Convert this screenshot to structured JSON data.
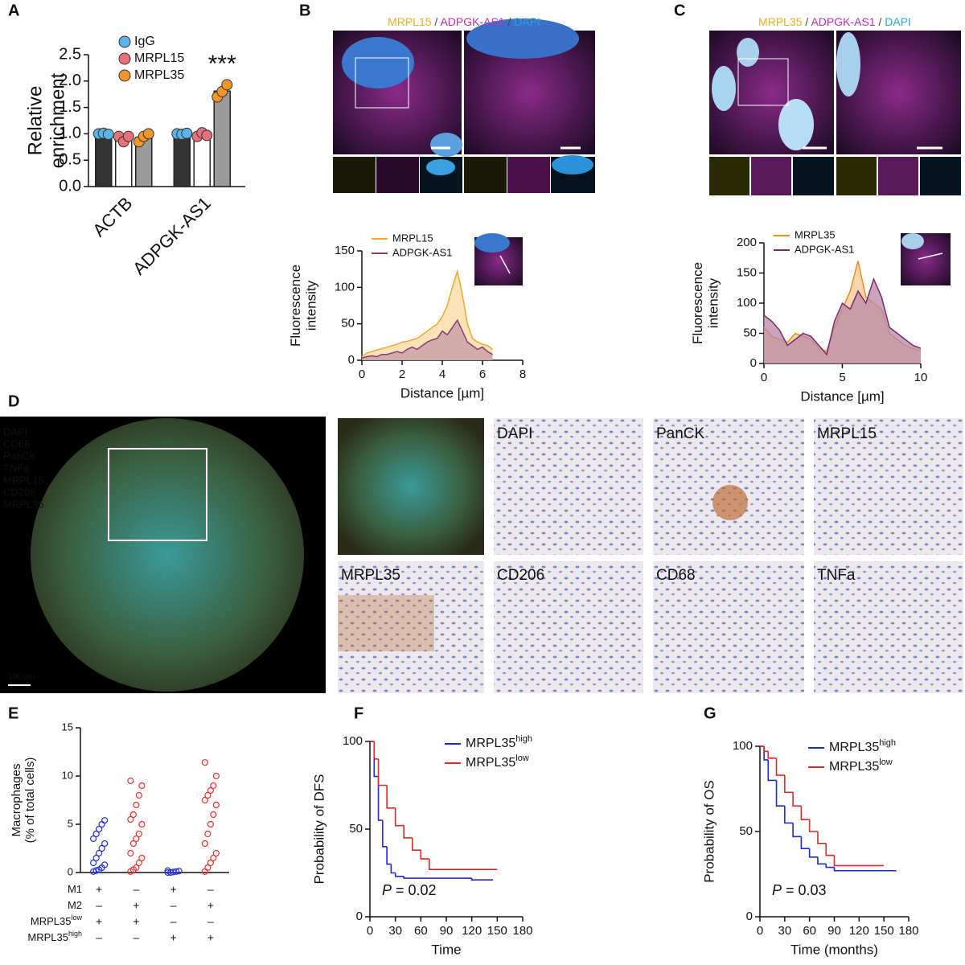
{
  "panel_labels": [
    "A",
    "B",
    "C",
    "D",
    "E",
    "F",
    "G"
  ],
  "images": {
    "B_title": [
      {
        "text": "MRPL15",
        "color": "#e8b020"
      },
      {
        "text": " / ",
        "color": "#444444"
      },
      {
        "text": "ADPGK-AS1",
        "color": "#c02cb8"
      },
      {
        "text": " / ",
        "color": "#444444"
      },
      {
        "text": "DAPI",
        "color": "#2ea0e0"
      }
    ],
    "C_title": [
      {
        "text": "MRPL35",
        "color": "#e8b020"
      },
      {
        "text": " / ",
        "color": "#444444"
      },
      {
        "text": "ADPGK-AS1",
        "color": "#c02cb8"
      },
      {
        "text": " / ",
        "color": "#444444"
      },
      {
        "text": "DAPI",
        "color": "#2ea0e0"
      }
    ],
    "D_legend": [
      {
        "text": "DAPI",
        "color": "#ffffff"
      },
      {
        "text": "CD68",
        "color": "#3a3ad0"
      },
      {
        "text": "PanCK",
        "color": "#40c8c8"
      },
      {
        "text": "TNFa",
        "color": "#40c040"
      },
      {
        "text": "MRPL15",
        "color": "#e8e040"
      },
      {
        "text": "CD206",
        "color": "#f08030"
      },
      {
        "text": "MRPL35",
        "color": "#e03020"
      }
    ],
    "D_scale": "100 µm",
    "D_tiles": [
      {
        "text": "DAPI",
        "color": "#6f86c6"
      },
      {
        "text": "PanCK",
        "color": "#b0502a"
      },
      {
        "text": "MRPL15",
        "color": "#b0502a"
      },
      {
        "text": "MRPL35",
        "color": "#b0502a"
      },
      {
        "text": "CD206",
        "color": "#b0502a"
      },
      {
        "text": "CD68",
        "color": "#b0502a"
      },
      {
        "text": "TNFa",
        "color": "#b0502a"
      }
    ]
  },
  "chart_data": [
    {
      "type": "bar",
      "ylabel": [
        "Relative",
        "enrichment"
      ],
      "categories": [
        "ACTB",
        "ADPGK-AS1"
      ],
      "series": [
        {
          "name": "IgG",
          "color": "#5ab4e8",
          "bar_color": "#333333",
          "values": [
            1.0,
            1.0
          ],
          "points": [
            [
              1.0,
              1.01,
              0.99
            ],
            [
              1.0,
              0.99,
              1.01
            ]
          ]
        },
        {
          "name": "MRPL15",
          "color": "#e8707a",
          "bar_color": "#ffffff",
          "values": [
            0.92,
            0.98
          ],
          "points": [
            [
              0.95,
              0.85,
              0.95
            ],
            [
              0.95,
              1.02,
              0.97
            ]
          ]
        },
        {
          "name": "MRPL35",
          "color": "#f0962a",
          "bar_color": "#9a9a9a",
          "values": [
            0.93,
            1.81
          ],
          "points": [
            [
              0.85,
              0.95,
              1.0
            ],
            [
              1.7,
              1.8,
              1.93
            ]
          ]
        }
      ],
      "annotation": "***",
      "ylim": [
        0,
        2.5
      ],
      "yticks": [
        {
          "value": 0,
          "label": "0.0"
        },
        0.5,
        {
          "value": 1,
          "label": "1.0"
        },
        1.5,
        {
          "value": 2,
          "label": "2.0"
        },
        2.5
      ]
    },
    {
      "type": "area",
      "xlabel": "Distance [µm]",
      "ylabel": [
        "Fluorescence",
        "intensity"
      ],
      "x": [
        0,
        0.25,
        0.5,
        0.75,
        1,
        1.25,
        1.5,
        1.75,
        2,
        2.25,
        2.5,
        2.75,
        3,
        3.25,
        3.5,
        3.75,
        4,
        4.25,
        4.5,
        4.75,
        5,
        5.25,
        5.5,
        5.75,
        6,
        6.25,
        6.5
      ],
      "series": [
        {
          "name": "MRPL15",
          "color": "#f0a830",
          "fill": "#f8d9a0",
          "values": [
            5,
            10,
            12,
            14,
            16,
            18,
            20,
            22,
            25,
            26,
            28,
            30,
            35,
            40,
            45,
            50,
            60,
            75,
            100,
            122,
            90,
            50,
            30,
            25,
            22,
            20,
            15
          ]
        },
        {
          "name": "ADPGK-AS1",
          "color": "#8e3a6a",
          "fill": "#c49aa6",
          "values": [
            3,
            5,
            6,
            5,
            8,
            8,
            10,
            12,
            10,
            15,
            18,
            15,
            20,
            25,
            28,
            30,
            40,
            35,
            45,
            55,
            40,
            25,
            20,
            15,
            18,
            12,
            8
          ]
        }
      ],
      "xlim": [
        0,
        8
      ],
      "xticks": [
        0,
        2,
        4,
        6,
        8
      ],
      "ylim": [
        0,
        150
      ],
      "yticks": [
        0,
        50,
        100,
        150
      ]
    },
    {
      "type": "area",
      "xlabel": "Distance [µm]",
      "ylabel": [
        "Fluorescence",
        "intensity"
      ],
      "x": [
        0,
        0.5,
        1,
        1.5,
        2,
        2.5,
        3,
        3.5,
        4,
        4.5,
        5,
        5.5,
        6,
        6.5,
        7,
        7.5,
        8,
        8.5,
        9,
        9.5,
        10
      ],
      "series": [
        {
          "name": "MRPL35",
          "color": "#f08a20",
          "fill": "#f5c890",
          "values": [
            60,
            45,
            40,
            35,
            50,
            45,
            40,
            25,
            20,
            60,
            90,
            120,
            170,
            110,
            100,
            90,
            50,
            40,
            30,
            25,
            20
          ]
        },
        {
          "name": "ADPGK-AS1",
          "color": "#7a2a6a",
          "fill": "#b888a8",
          "values": [
            80,
            70,
            55,
            30,
            40,
            50,
            45,
            30,
            15,
            70,
            100,
            90,
            120,
            100,
            140,
            110,
            60,
            50,
            40,
            30,
            25
          ]
        }
      ],
      "xlim": [
        0,
        10
      ],
      "xticks": [
        0,
        5,
        10
      ],
      "ylim": [
        0,
        200
      ],
      "yticks": [
        0,
        50,
        100,
        150,
        200
      ]
    },
    {
      "type": "strip",
      "ylabel": [
        "Macrophages",
        "(% of total cells)"
      ],
      "groups": [
        {
          "color": "#2030e0",
          "values": [
            0.1,
            0.2,
            0.3,
            0.5,
            0.8,
            1,
            1.5,
            2,
            2.5,
            3,
            3.5,
            4,
            4.5,
            5,
            5.4
          ]
        },
        {
          "color": "#f03030",
          "values": [
            0.1,
            0.3,
            0.5,
            1,
            1.5,
            2,
            3,
            3.5,
            4,
            5,
            5.5,
            6,
            7,
            8,
            9,
            9.5
          ]
        },
        {
          "color": "#2030e0",
          "values": [
            0,
            0,
            0.05,
            0.1,
            0.15,
            0.2
          ]
        },
        {
          "color": "#f03030",
          "values": [
            0.1,
            0.5,
            1,
            1.5,
            2,
            3,
            4,
            5,
            6,
            7,
            7.5,
            8,
            8.5,
            9,
            10,
            11.4
          ]
        }
      ],
      "factors": [
        {
          "label": "M1",
          "marks": [
            "+",
            "–",
            "+",
            "–"
          ]
        },
        {
          "label": "M2",
          "marks": [
            "–",
            "+",
            "–",
            "+"
          ]
        },
        {
          "label": "MRPL35",
          "sup": "low",
          "marks": [
            "+",
            "+",
            "–",
            "–"
          ]
        },
        {
          "label": "MRPL35",
          "sup": "high",
          "marks": [
            "–",
            "–",
            "+",
            "+"
          ]
        }
      ],
      "ylim": [
        0,
        15
      ],
      "yticks": [
        0,
        5,
        10,
        15
      ]
    },
    {
      "type": "km",
      "xlabel": "Time",
      "ylabel": "Probability of DFS",
      "series": [
        {
          "name": "MRPL35",
          "name_sup": "high",
          "color": "#1a2ad8",
          "x": [
            0,
            5,
            10,
            15,
            20,
            25,
            30,
            40,
            60,
            90,
            120,
            145
          ],
          "values": [
            100,
            80,
            55,
            40,
            30,
            25,
            23,
            22,
            22,
            22,
            21,
            21
          ]
        },
        {
          "name": "MRPL35",
          "name_sup": "low",
          "color": "#e02828",
          "x": [
            0,
            5,
            10,
            20,
            30,
            40,
            50,
            60,
            70,
            80,
            100,
            150
          ],
          "values": [
            100,
            90,
            75,
            62,
            52,
            45,
            38,
            33,
            27,
            27,
            27,
            27
          ]
        }
      ],
      "annotation": {
        "italic": "P",
        "text": " = 0.02"
      },
      "xlim": [
        0,
        180
      ],
      "xticks": [
        0,
        30,
        60,
        90,
        120,
        150,
        180
      ],
      "ylim": [
        0,
        100
      ],
      "yticks": [
        0,
        50,
        100
      ]
    },
    {
      "type": "km",
      "xlabel": "Time (months)",
      "ylabel": "Probability of OS",
      "series": [
        {
          "name": "MRPL35",
          "name_sup": "high",
          "color": "#1a2ad8",
          "x": [
            0,
            5,
            10,
            20,
            30,
            40,
            50,
            60,
            70,
            80,
            90,
            165
          ],
          "values": [
            100,
            92,
            80,
            65,
            55,
            47,
            40,
            35,
            31,
            29,
            27,
            27
          ]
        },
        {
          "name": "MRPL35",
          "name_sup": "low",
          "color": "#e02828",
          "x": [
            0,
            5,
            10,
            20,
            30,
            40,
            50,
            60,
            70,
            80,
            90,
            150
          ],
          "values": [
            100,
            97,
            93,
            83,
            73,
            65,
            57,
            50,
            43,
            36,
            30,
            30
          ]
        }
      ],
      "annotation": {
        "italic": "P",
        "text": " = 0.03"
      },
      "xlim": [
        0,
        180
      ],
      "xticks": [
        0,
        30,
        60,
        90,
        120,
        150,
        180
      ],
      "ylim": [
        0,
        100
      ],
      "yticks": [
        0,
        50,
        100
      ]
    }
  ]
}
